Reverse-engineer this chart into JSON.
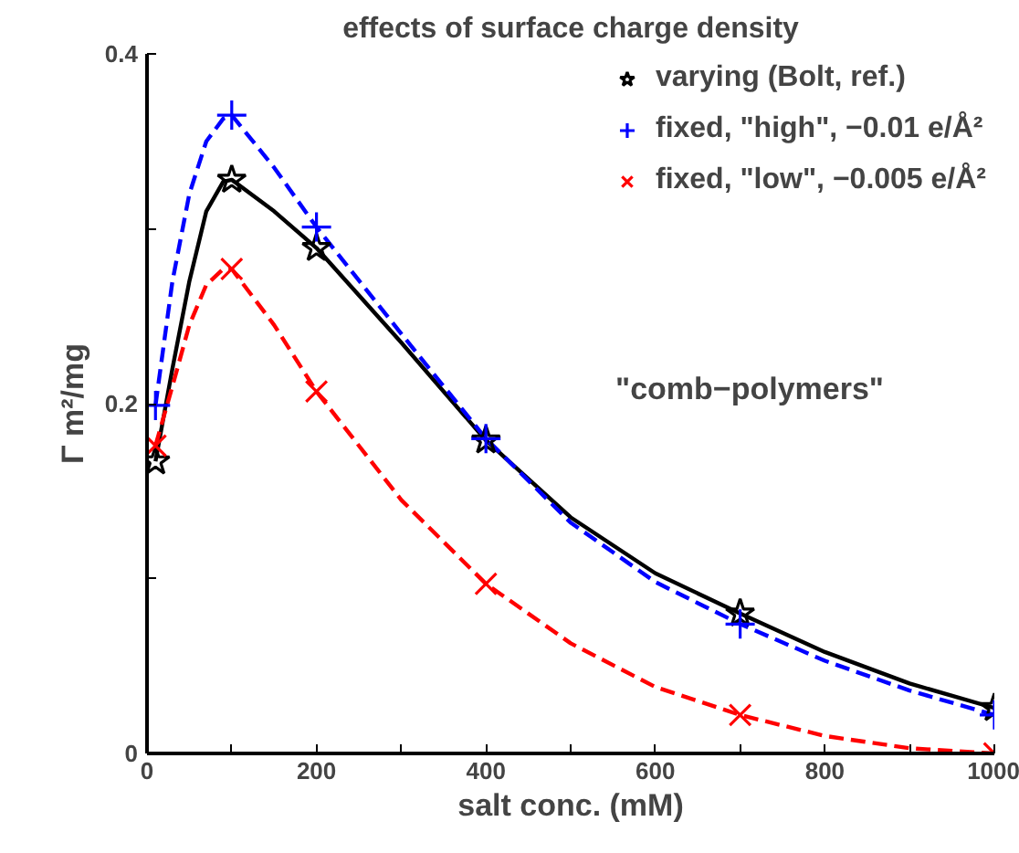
{
  "chart_data": {
    "type": "scatter",
    "title": "effects of surface charge density",
    "xlabel": "salt conc. (mM)",
    "ylabel": "Γ m²/mg",
    "x": [
      10,
      100,
      200,
      400,
      700,
      1000
    ],
    "series": [
      {
        "type": "line",
        "color": "#000000",
        "line_style": "solid",
        "x": [
          10,
          30,
          50,
          70,
          90,
          100,
          150,
          200,
          300,
          400,
          500,
          600,
          700,
          800,
          900,
          1000
        ],
        "values": [
          0.167,
          0.22,
          0.27,
          0.31,
          0.327,
          0.328,
          0.31,
          0.289,
          0.235,
          0.179,
          0.135,
          0.103,
          0.08,
          0.058,
          0.04,
          0.026
        ]
      },
      {
        "type": "line",
        "color": "#0000ff",
        "line_style": "dashed",
        "x": [
          10,
          30,
          50,
          70,
          90,
          100,
          150,
          200,
          300,
          400,
          500,
          600,
          700,
          800,
          900,
          1000
        ],
        "values": [
          0.199,
          0.27,
          0.32,
          0.35,
          0.363,
          0.365,
          0.335,
          0.301,
          0.24,
          0.18,
          0.132,
          0.098,
          0.074,
          0.053,
          0.036,
          0.022
        ]
      },
      {
        "type": "line",
        "color": "#ff0000",
        "line_style": "dashed",
        "x": [
          10,
          30,
          50,
          70,
          90,
          100,
          150,
          200,
          300,
          400,
          500,
          600,
          700,
          800,
          900,
          1000
        ],
        "values": [
          0.176,
          0.21,
          0.245,
          0.268,
          0.277,
          0.277,
          0.245,
          0.207,
          0.145,
          0.097,
          0.063,
          0.038,
          0.022,
          0.01,
          0.003,
          0.0
        ]
      },
      {
        "name": "varying (Bolt, ref.)",
        "color": "#000000",
        "marker": "star",
        "values": [
          0.167,
          0.328,
          0.289,
          0.179,
          0.08,
          0.026
        ]
      },
      {
        "name": "fixed, \"high\", −0.01 e/Å²",
        "color": "#0000ff",
        "marker": "cross",
        "values": [
          0.199,
          0.365,
          0.301,
          0.18,
          0.074,
          0.022
        ]
      },
      {
        "name": "fixed, \"low\", −0.005 e/Å²",
        "color": "#ff0000",
        "marker": "x",
        "values": [
          0.176,
          0.277,
          0.207,
          0.097,
          0.022,
          0.0
        ]
      }
    ],
    "xlim": [
      0,
      1000
    ],
    "ylim": [
      0,
      0.4
    ],
    "xticks": [
      0,
      {
        "value": 100,
        "label": null
      },
      200,
      {
        "value": 300,
        "label": null
      },
      400,
      {
        "value": 500,
        "label": null
      },
      600,
      {
        "value": 700,
        "label": null
      },
      800,
      {
        "value": 900,
        "label": null
      },
      1000
    ],
    "yticks": [
      0,
      {
        "value": 0.1,
        "label": null
      },
      0.2,
      {
        "value": 0.3,
        "label": null
      },
      0.4
    ],
    "annotations": [
      "\"comb−polymers\""
    ],
    "legend": "top right",
    "grid": false
  }
}
